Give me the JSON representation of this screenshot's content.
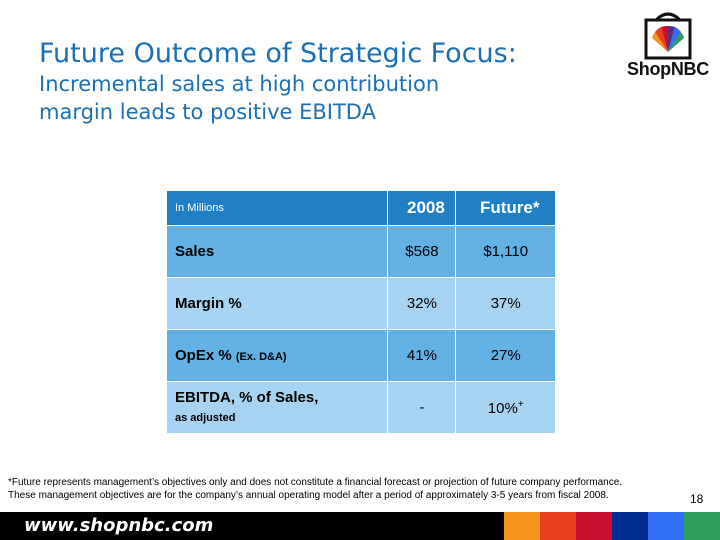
{
  "title": {
    "main": "Future Outcome of Strategic Focus:",
    "sub_line1": "Incremental sales at high contribution",
    "sub_line2": "margin leads to positive EBITDA"
  },
  "logo": {
    "text": "ShopNBC"
  },
  "table": {
    "header": {
      "label": "In Millions",
      "col1": "2008",
      "col2": "Future*"
    },
    "rows": [
      {
        "label": "Sales",
        "v2008": "$568",
        "future": "$1,110"
      },
      {
        "label": "Margin %",
        "v2008": "32%",
        "future": "37%"
      },
      {
        "label": "OpEx %",
        "label_note": "(Ex. D&A)",
        "v2008": "41%",
        "future": "27%"
      },
      {
        "label": "EBITDA, % of Sales,",
        "label_note": "as adjusted",
        "v2008": "-",
        "future": "10%",
        "future_sup": "+"
      }
    ]
  },
  "footnote": {
    "line1": "*Future represents management’s objectives only and does not constitute a financial forecast or projection of future company performance.",
    "line2": "These management objectives are for the company’s annual operating model after a period of approximately 3-5 years from fiscal 2008."
  },
  "page_number": "18",
  "footer": {
    "url": "www.shopnbc.com",
    "stripe_colors": [
      "#f7941d",
      "#e8401c",
      "#c8102e",
      "#002d8f",
      "#2f6ef5",
      "#2e9e5b"
    ]
  }
}
